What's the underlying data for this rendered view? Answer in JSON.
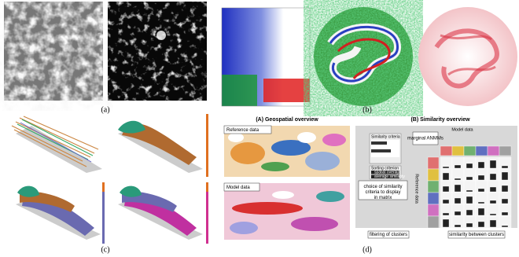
{
  "figure": {
    "labels": {
      "a": "(a)",
      "b": "(b)",
      "c": "(c)",
      "d": "(d)"
    }
  },
  "panel_d": {
    "geospatial_title": "(A) Geospatial overview",
    "similarity_title": "(B) Similarity overview",
    "reference_label": "Reference data",
    "model_label": "Model data",
    "matrix_model_label": "Model data",
    "matrix_reference_label": "Reference data",
    "similarity_criteria": "Similarity criteria",
    "sorting_criterion": "Sorting criterion",
    "sort_options": [
      "spatial overlap",
      "average similarity"
    ],
    "annotations": [
      "marginal ANMMs",
      "choice of similarity criteria to display in matrix",
      "filtering of clusters",
      "similarity between clusters"
    ]
  }
}
